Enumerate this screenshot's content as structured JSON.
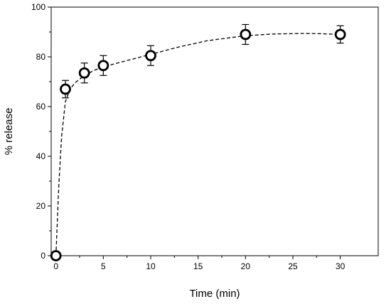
{
  "chart_data": {
    "type": "scatter",
    "title": "",
    "xlabel": "Time (min)",
    "ylabel": "% release",
    "xlim": [
      -0.5,
      34
    ],
    "ylim": [
      0,
      100
    ],
    "x_ticks": [
      0,
      5,
      10,
      15,
      20,
      25,
      30
    ],
    "y_ticks": [
      0,
      20,
      40,
      60,
      80,
      100
    ],
    "grid": false,
    "legend": "none",
    "colors": {
      "marker_stroke": "#000000",
      "marker_fill": "#ffffff",
      "fit_line": "#000000"
    },
    "series": [
      {
        "x": [
          0,
          1,
          3,
          5,
          10,
          20,
          30
        ],
        "y": [
          0,
          67,
          73.5,
          76.5,
          80.5,
          89,
          89
        ],
        "error": [
          0,
          3.5,
          4,
          4,
          4,
          4,
          3.5
        ]
      }
    ],
    "fit_curve": {
      "style": "dashed",
      "x": [
        0,
        0.3,
        0.6,
        1,
        1.5,
        2,
        3,
        4,
        5,
        7,
        10,
        13,
        16,
        20,
        23,
        26,
        28,
        30
      ],
      "y": [
        0,
        28,
        48,
        62,
        67,
        69.5,
        72.5,
        74.5,
        76,
        78,
        81,
        84,
        86.5,
        88.5,
        89.2,
        89.4,
        89.3,
        89
      ]
    }
  }
}
